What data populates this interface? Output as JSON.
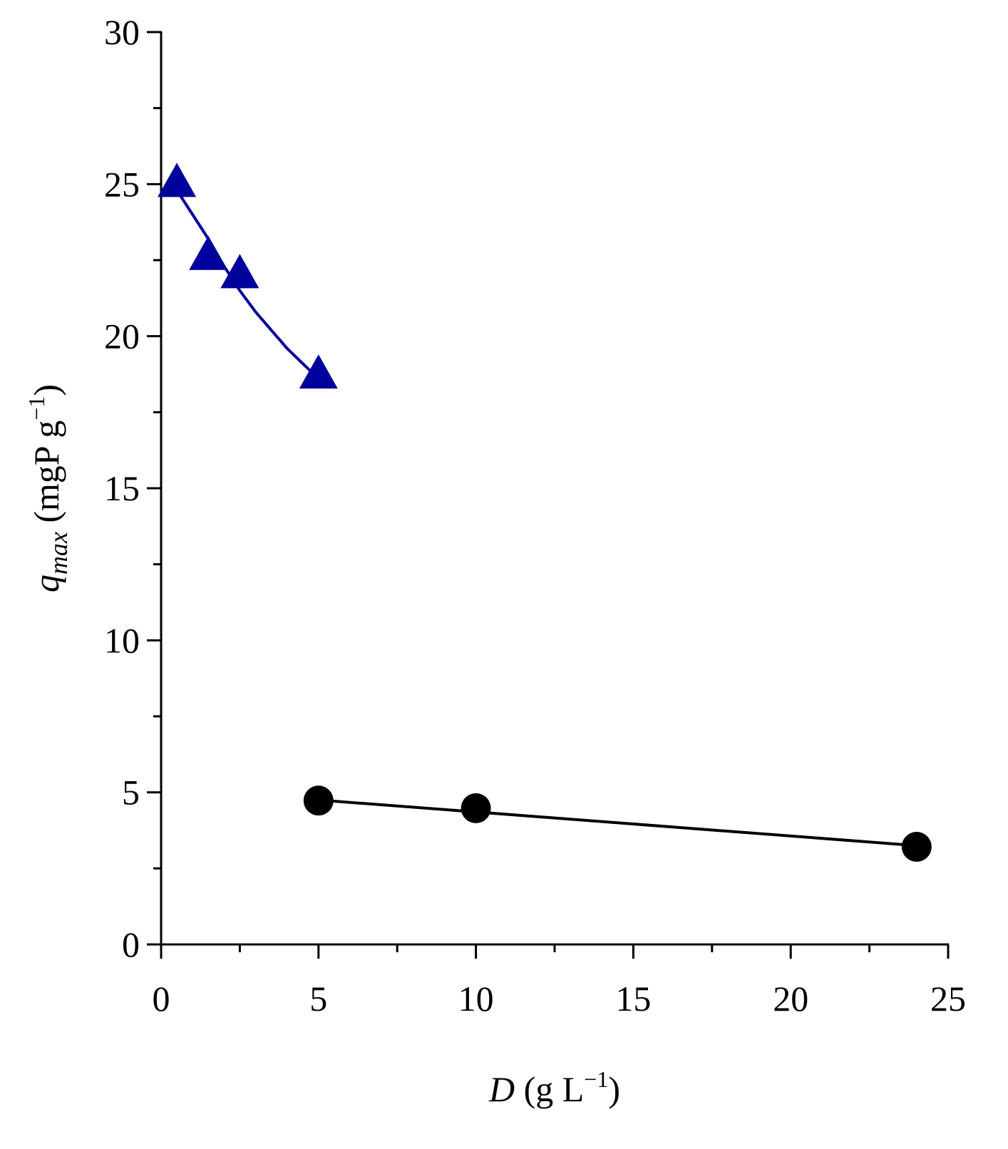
{
  "chart_data": {
    "type": "scatter",
    "xlabel": [
      "D",
      " (g L",
      "−1",
      ")"
    ],
    "ylabel": [
      "q",
      "max",
      " (mgP g",
      "−1",
      ")"
    ],
    "xlim": [
      0,
      25
    ],
    "xticks": [
      0,
      5,
      10,
      15,
      20,
      25
    ],
    "xticks_minor": [
      2.5,
      7.5,
      12.5,
      17.5,
      22.5
    ],
    "ylim": [
      0,
      30
    ],
    "yticks": [
      0,
      5,
      10,
      15,
      20,
      25,
      30
    ],
    "yticks_minor": [
      2.5,
      7.5,
      12.5,
      17.5,
      22.5,
      27.5
    ],
    "series": [
      {
        "color": "#00009c",
        "marker": "triangle",
        "x": [
          0.5,
          1.5,
          2.5,
          5
        ],
        "values": [
          25.0,
          22.6,
          22.0,
          18.7
        ]
      },
      {
        "color": "#00009c",
        "marker": "none",
        "x": [
          0.5,
          1,
          1.5,
          2,
          2.5,
          3,
          3.5,
          4,
          4.5,
          5
        ],
        "values": [
          24.8,
          24.0,
          23.2,
          22.3,
          21.5,
          20.8,
          20.2,
          19.6,
          19.1,
          18.6
        ]
      },
      {
        "color": "#000000",
        "marker": "circle",
        "x": [
          5,
          10,
          24
        ],
        "values": [
          4.73,
          4.48,
          3.21
        ]
      },
      {
        "color": "#000000",
        "marker": "none",
        "x": [
          5,
          24
        ],
        "values": [
          4.75,
          3.25
        ]
      }
    ]
  }
}
